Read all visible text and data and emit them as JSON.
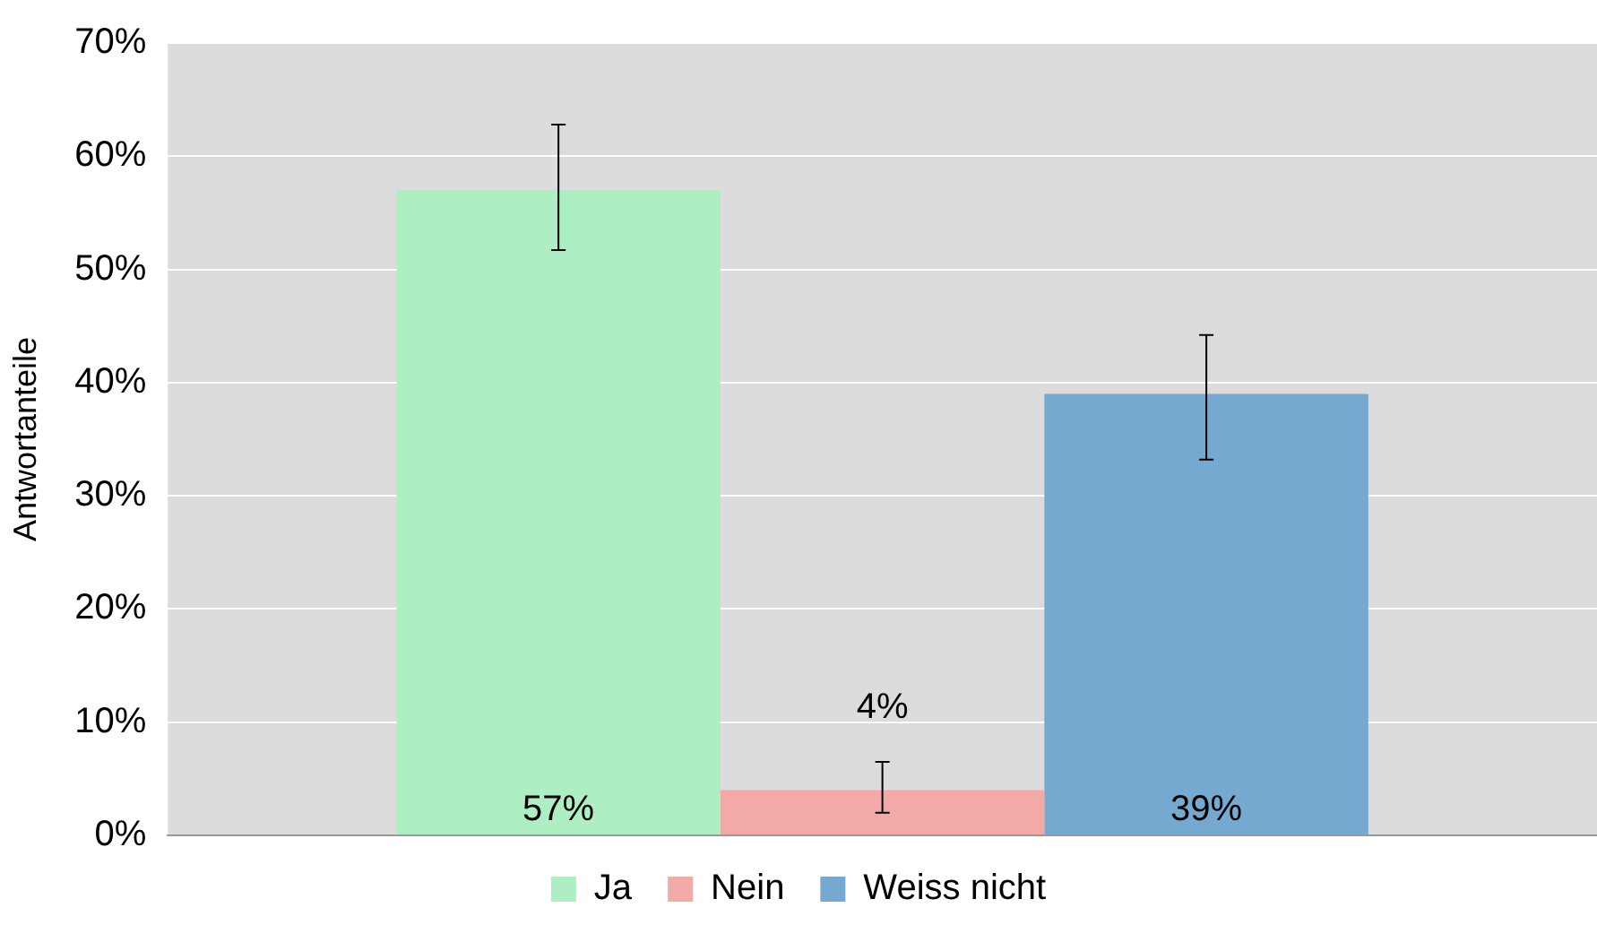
{
  "chart_data": {
    "type": "bar",
    "ylabel": "Antwortanteile",
    "categories": [
      null
    ],
    "series": [
      {
        "name": "Ja",
        "color": "#adefc3",
        "values": [
          57
        ],
        "errors": [
          [
            51.7,
            62.8
          ]
        ],
        "value_labels": [
          "57%"
        ]
      },
      {
        "name": "Nein",
        "color": "#f4a9a9",
        "values": [
          4
        ],
        "errors": [
          [
            2,
            6.5
          ]
        ],
        "value_labels": [
          "4%"
        ]
      },
      {
        "name": "Weiss nicht",
        "color": "#75a9d0",
        "values": [
          39
        ],
        "errors": [
          [
            33.2,
            44.2
          ]
        ],
        "value_labels": [
          "39%"
        ]
      }
    ],
    "ylim": [
      0,
      70
    ],
    "yticks": [
      {
        "value": 0,
        "label": "0%"
      },
      {
        "value": 10,
        "label": "10%"
      },
      {
        "value": 20,
        "label": "20%"
      },
      {
        "value": 30,
        "label": "30%"
      },
      {
        "value": 40,
        "label": "40%"
      },
      {
        "value": 50,
        "label": "50%"
      },
      {
        "value": 60,
        "label": "60%"
      },
      {
        "value": 70,
        "label": "70%"
      }
    ],
    "grid": "y",
    "legend": "bottom"
  }
}
